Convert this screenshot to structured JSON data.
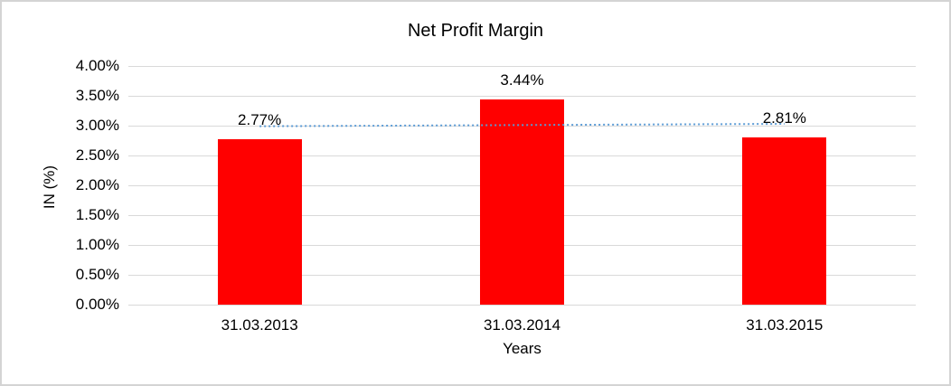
{
  "chart_data": {
    "type": "bar",
    "title": "Net Profit Margin",
    "xlabel": "Years",
    "ylabel": "IN (%)",
    "categories": [
      "31.03.2013",
      "31.03.2014",
      "31.03.2015"
    ],
    "values": [
      2.77,
      3.44,
      2.81
    ],
    "value_labels": [
      "2.77%",
      "3.44%",
      "2.81%"
    ],
    "yticks": [
      "4.00%",
      "3.50%",
      "3.00%",
      "2.50%",
      "2.00%",
      "1.50%",
      "1.00%",
      "0.50%",
      "0.00%"
    ],
    "ylim": [
      0,
      4
    ],
    "ytick_step": 0.5,
    "legend": "none",
    "grid": "horizontal",
    "bar_color": "#FF0000",
    "gridline_color": "#D9D9D9",
    "text_color": "#000000",
    "background": "#FFFFFF",
    "border_color": "#D4D4D4",
    "trendline": {
      "type": "linear",
      "style": "dotted",
      "color": "#5B9BD5",
      "start_value": 2.99,
      "end_value": 3.03
    }
  }
}
